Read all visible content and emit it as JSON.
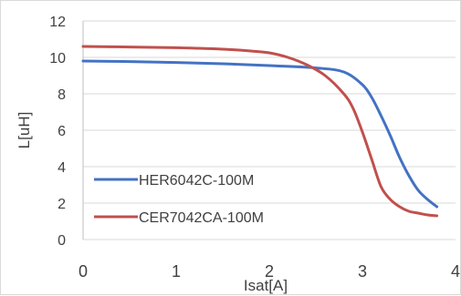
{
  "chart_data": {
    "type": "line",
    "title": "",
    "xlabel": "Isat[A]",
    "ylabel": "L[uH]",
    "xlim": [
      0,
      4
    ],
    "ylim": [
      0,
      12
    ],
    "x_ticks": [
      0,
      1,
      2,
      3,
      4
    ],
    "y_ticks": [
      0,
      2,
      4,
      6,
      8,
      10,
      12
    ],
    "x_tick_labels": [
      "0",
      "1",
      "2",
      "3",
      "4"
    ],
    "y_tick_labels": [
      "0",
      "2",
      "4",
      "6",
      "8",
      "10",
      "12"
    ],
    "grid": "horizontal",
    "legend": "lower-left, inside plot",
    "series": [
      {
        "name": "HER6042C-100M",
        "color": "#4472c4",
        "points": [
          [
            0,
            9.8
          ],
          [
            0.5,
            9.77
          ],
          [
            1.0,
            9.72
          ],
          [
            1.5,
            9.65
          ],
          [
            2.0,
            9.55
          ],
          [
            2.5,
            9.42
          ],
          [
            2.8,
            9.2
          ],
          [
            3.0,
            8.5
          ],
          [
            3.1,
            7.8
          ],
          [
            3.2,
            6.8
          ],
          [
            3.3,
            5.7
          ],
          [
            3.4,
            4.5
          ],
          [
            3.5,
            3.5
          ],
          [
            3.6,
            2.7
          ],
          [
            3.7,
            2.2
          ],
          [
            3.8,
            1.8
          ]
        ]
      },
      {
        "name": "CER7042CA-100M",
        "color": "#c0504d",
        "points": [
          [
            0,
            10.6
          ],
          [
            0.5,
            10.57
          ],
          [
            1.0,
            10.53
          ],
          [
            1.5,
            10.45
          ],
          [
            1.8,
            10.35
          ],
          [
            2.0,
            10.25
          ],
          [
            2.2,
            10.0
          ],
          [
            2.4,
            9.6
          ],
          [
            2.6,
            9.0
          ],
          [
            2.8,
            8.0
          ],
          [
            2.9,
            7.2
          ],
          [
            3.0,
            5.9
          ],
          [
            3.1,
            4.4
          ],
          [
            3.2,
            2.9
          ],
          [
            3.3,
            2.2
          ],
          [
            3.4,
            1.8
          ],
          [
            3.5,
            1.55
          ],
          [
            3.6,
            1.45
          ],
          [
            3.7,
            1.35
          ],
          [
            3.8,
            1.3
          ]
        ]
      }
    ]
  }
}
